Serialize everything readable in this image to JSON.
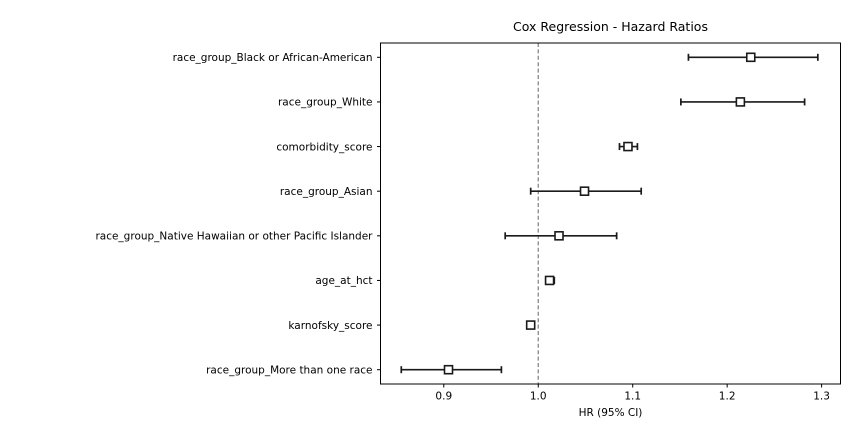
{
  "chart_data": {
    "type": "scatter",
    "subtype": "forest-plot",
    "title": "Cox Regression - Hazard Ratios",
    "xlabel": "HR (95% CI)",
    "ylabel": "",
    "grid": false,
    "legend": "none",
    "marker": "open-square",
    "xlim": [
      0.833,
      1.32
    ],
    "xticks": [
      "0.9",
      "1.0",
      "1.1",
      "1.2",
      "1.3"
    ],
    "reference_line_x": 1.0,
    "categories": [
      "race_group_Black or African-American",
      "race_group_White",
      "comorbidity_score",
      "race_group_Asian",
      "race_group_Native Hawaiian or other Pacific Islander",
      "age_at_hct",
      "karnofsky_score",
      "race_group_More than one race"
    ],
    "series": [
      {
        "name": "HR",
        "values": [
          1.225,
          1.214,
          1.095,
          1.049,
          1.022,
          1.012,
          0.992,
          0.905
        ]
      },
      {
        "name": "CI_lower",
        "values": [
          1.159,
          1.151,
          1.086,
          0.992,
          0.965,
          1.008,
          0.988,
          0.855
        ]
      },
      {
        "name": "CI_upper",
        "values": [
          1.296,
          1.282,
          1.105,
          1.109,
          1.083,
          1.017,
          0.996,
          0.961
        ]
      }
    ],
    "colors": {
      "background": "#ffffff",
      "axis": "#000000",
      "text": "#000000",
      "error_bar": "#1a1a1a",
      "marker_edge": "#1a1a1a",
      "marker_face": "#ffffff",
      "reference_line": "#7f7f7f"
    }
  }
}
